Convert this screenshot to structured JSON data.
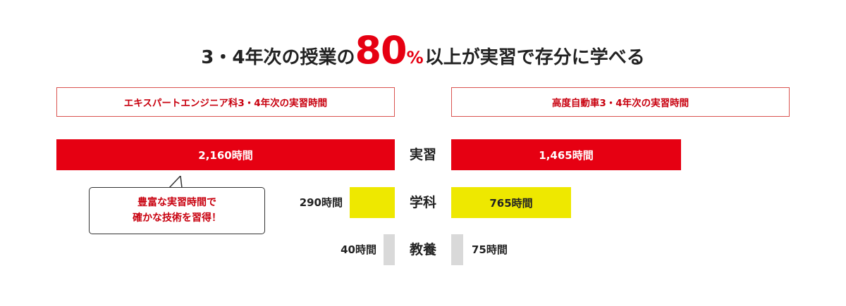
{
  "headline": {
    "prefix": "3・4年次の授業の",
    "number": "80",
    "unit": "%",
    "suffix": "以上が実習で存分に学べる"
  },
  "departments": {
    "left": "エキスパートエンジニア科3・4年次の実習時間",
    "right": "高度自動車3・4年次の実習時間"
  },
  "colors": {
    "practice": "#e60012",
    "academic": "#eee800",
    "general": "#d9d9d9",
    "accent_text": "#c8000e"
  },
  "callout": {
    "line1": "豊富な実習時間で",
    "line2": "確かな技術を習得！"
  },
  "chart_data": {
    "type": "bar",
    "orientation": "horizontal-butterfly",
    "categories": [
      "実習",
      "学科",
      "教養"
    ],
    "series": [
      {
        "name": "エキスパートエンジニア科3・4年次の実習時間",
        "values": [
          2160,
          290,
          40
        ],
        "labels": [
          "2,160時間",
          "290時間",
          "40時間"
        ],
        "side": "left"
      },
      {
        "name": "高度自動車3・4年次の実習時間",
        "values": [
          1465,
          765,
          75
        ],
        "labels": [
          "1,465時間",
          "765時間",
          "75時間"
        ],
        "side": "right"
      }
    ]
  }
}
